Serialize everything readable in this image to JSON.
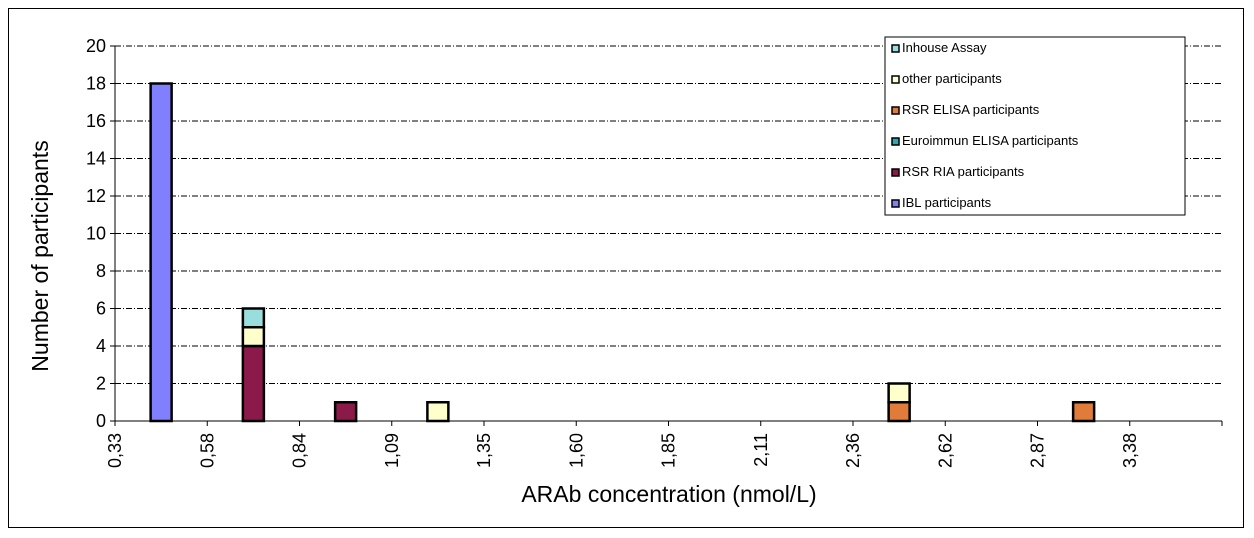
{
  "chart_data": {
    "type": "bar",
    "stacked": true,
    "categories": [
      "0,33",
      "0,58",
      "0,84",
      "1,09",
      "1,35",
      "1,60",
      "1,85",
      "2,11",
      "2,36",
      "2,62",
      "2,87",
      "3,38"
    ],
    "xlabel": "ARAb concentration (nmol/L)",
    "ylabel": "Number of participants",
    "ylim": [
      0,
      20
    ],
    "yticks": [
      0,
      2,
      4,
      6,
      8,
      10,
      12,
      14,
      16,
      18,
      20
    ],
    "grid": "horizontal-dashed",
    "legend_position": "top-right",
    "series": [
      {
        "name": "IBL participants",
        "color": "#8080ff",
        "values": [
          18,
          0,
          0,
          0,
          0,
          0,
          0,
          0,
          0,
          0,
          0,
          0
        ]
      },
      {
        "name": "RSR RIA participants",
        "color": "#8b1a4a",
        "values": [
          0,
          4,
          1,
          0,
          0,
          0,
          0,
          0,
          0,
          0,
          0,
          0
        ]
      },
      {
        "name": "Euroimmun ELISA participants",
        "color": "#2aa8b8",
        "values": [
          0,
          0,
          0,
          0,
          0,
          0,
          0,
          0,
          0,
          0,
          0,
          0
        ]
      },
      {
        "name": "RSR ELISA participants",
        "color": "#e07b39",
        "values": [
          0,
          0,
          0,
          0,
          0,
          0,
          0,
          0,
          1,
          0,
          1,
          0
        ]
      },
      {
        "name": "other participants",
        "color": "#ffffcc",
        "values": [
          0,
          1,
          0,
          1,
          0,
          0,
          0,
          0,
          1,
          0,
          0,
          0
        ]
      },
      {
        "name": "Inhouse Assay",
        "color": "#99dddd",
        "values": [
          0,
          1,
          0,
          0,
          0,
          0,
          0,
          0,
          0,
          0,
          0,
          0
        ]
      }
    ],
    "legend_order": [
      "Inhouse Assay",
      "other participants",
      "RSR ELISA participants",
      "Euroimmun ELISA participants",
      "RSR RIA participants",
      "IBL participants"
    ]
  }
}
